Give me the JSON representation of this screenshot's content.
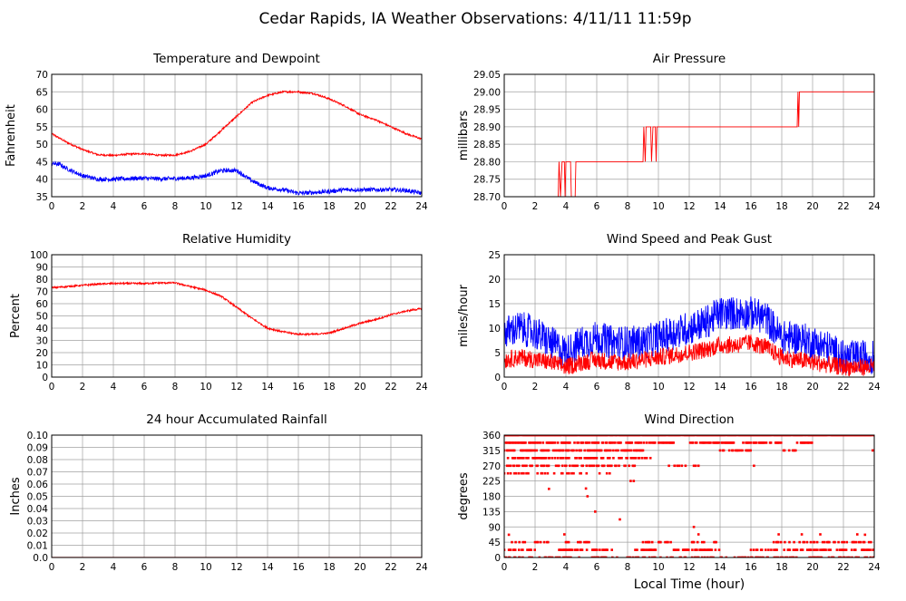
{
  "page": {
    "title": "Cedar Rapids, IA Weather Observations: 4/11/11 11:59p"
  },
  "colors": {
    "red": "#ff0000",
    "blue": "#0000ff",
    "grid": "#a0a0a0",
    "axis": "#000000"
  },
  "chart_data": [
    {
      "id": "temp",
      "type": "line",
      "title": "Temperature and Dewpoint",
      "ylabel": "Fahrenheit",
      "xlabel": "",
      "xlim": [
        0,
        24
      ],
      "ylim": [
        35,
        70
      ],
      "xticks": [
        0,
        2,
        4,
        6,
        8,
        10,
        12,
        14,
        16,
        18,
        20,
        22,
        24
      ],
      "yticks": [
        35,
        40,
        45,
        50,
        55,
        60,
        65,
        70
      ],
      "series": [
        {
          "color": "#ff0000",
          "noise": 0.25,
          "points": [
            [
              0,
              53
            ],
            [
              1,
              50.5
            ],
            [
              2,
              48.5
            ],
            [
              3,
              47
            ],
            [
              4,
              46.8
            ],
            [
              5,
              47.2
            ],
            [
              6,
              47.3
            ],
            [
              7,
              46.8
            ],
            [
              8,
              46.9
            ],
            [
              9,
              48
            ],
            [
              10,
              50
            ],
            [
              11,
              54
            ],
            [
              12,
              58
            ],
            [
              13,
              62
            ],
            [
              14,
              64
            ],
            [
              15,
              65
            ],
            [
              16,
              65
            ],
            [
              17,
              64.5
            ],
            [
              18,
              63
            ],
            [
              19,
              61
            ],
            [
              20,
              58.5
            ],
            [
              21,
              57
            ],
            [
              22,
              55
            ],
            [
              23,
              53
            ],
            [
              24,
              51.5
            ]
          ]
        },
        {
          "color": "#0000ff",
          "noise": 0.6,
          "points": [
            [
              0,
              44.5
            ],
            [
              0.5,
              44.3
            ],
            [
              1,
              43
            ],
            [
              2,
              41
            ],
            [
              3,
              40
            ],
            [
              4,
              40
            ],
            [
              5,
              40.2
            ],
            [
              6,
              40.3
            ],
            [
              7,
              40.1
            ],
            [
              8,
              40.2
            ],
            [
              9,
              40.4
            ],
            [
              10,
              41
            ],
            [
              11,
              42.5
            ],
            [
              12,
              42.5
            ],
            [
              13,
              39.5
            ],
            [
              14,
              37.5
            ],
            [
              15,
              37
            ],
            [
              16,
              36
            ],
            [
              17,
              36.2
            ],
            [
              18,
              36.5
            ],
            [
              19,
              37
            ],
            [
              20,
              37
            ],
            [
              21,
              37
            ],
            [
              22,
              37
            ],
            [
              23,
              36.8
            ],
            [
              24,
              36
            ]
          ]
        }
      ]
    },
    {
      "id": "pressure",
      "type": "line",
      "title": "Air Pressure",
      "ylabel": "millibars",
      "xlabel": "",
      "xlim": [
        0,
        24
      ],
      "ylim": [
        28.7,
        29.05
      ],
      "xticks": [
        0,
        2,
        4,
        6,
        8,
        10,
        12,
        14,
        16,
        18,
        20,
        22,
        24
      ],
      "yticks": [
        28.7,
        28.75,
        28.8,
        28.85,
        28.9,
        28.95,
        29.0,
        29.05
      ],
      "series": [
        {
          "color": "#ff0000",
          "noise": 0,
          "points": [
            [
              3.5,
              28.7
            ],
            [
              3.55,
              28.8
            ],
            [
              3.65,
              28.7
            ],
            [
              3.75,
              28.8
            ],
            [
              3.9,
              28.8
            ],
            [
              3.95,
              28.7
            ],
            [
              4,
              28.8
            ],
            [
              4.3,
              28.8
            ],
            [
              4.35,
              28.7
            ],
            [
              4.6,
              28.7
            ],
            [
              4.65,
              28.8
            ],
            [
              9.0,
              28.8
            ],
            [
              9.05,
              28.9
            ],
            [
              9.15,
              28.8
            ],
            [
              9.2,
              28.9
            ],
            [
              9.5,
              28.9
            ],
            [
              9.55,
              28.8
            ],
            [
              9.65,
              28.9
            ],
            [
              9.8,
              28.9
            ],
            [
              9.85,
              28.8
            ],
            [
              9.9,
              28.9
            ],
            [
              19.0,
              28.9
            ],
            [
              19.05,
              29.0
            ],
            [
              19.1,
              28.9
            ],
            [
              19.15,
              29.0
            ],
            [
              24,
              29.0
            ]
          ]
        }
      ]
    },
    {
      "id": "humidity",
      "type": "line",
      "title": "Relative Humidity",
      "ylabel": "Percent",
      "xlabel": "",
      "xlim": [
        0,
        24
      ],
      "ylim": [
        0,
        100
      ],
      "xticks": [
        0,
        2,
        4,
        6,
        8,
        10,
        12,
        14,
        16,
        18,
        20,
        22,
        24
      ],
      "yticks": [
        0,
        10,
        20,
        30,
        40,
        50,
        60,
        70,
        80,
        90,
        100
      ],
      "series": [
        {
          "color": "#ff0000",
          "noise": 0.7,
          "points": [
            [
              0,
              73
            ],
            [
              1,
              74
            ],
            [
              2,
              75
            ],
            [
              3,
              76
            ],
            [
              4,
              76.5
            ],
            [
              5,
              76.5
            ],
            [
              6,
              76.5
            ],
            [
              7,
              77
            ],
            [
              8,
              77
            ],
            [
              9,
              74
            ],
            [
              10,
              71
            ],
            [
              11,
              66
            ],
            [
              12,
              57
            ],
            [
              13,
              48
            ],
            [
              14,
              40
            ],
            [
              15,
              37
            ],
            [
              16,
              35
            ],
            [
              17,
              35
            ],
            [
              18,
              36
            ],
            [
              19,
              40
            ],
            [
              20,
              44
            ],
            [
              21,
              47
            ],
            [
              22,
              51
            ],
            [
              23,
              54
            ],
            [
              24,
              56
            ]
          ]
        }
      ]
    },
    {
      "id": "wind",
      "type": "line",
      "title": "Wind Speed and Peak Gust",
      "ylabel": "miles/hour",
      "xlabel": "",
      "xlim": [
        0,
        24
      ],
      "ylim": [
        0,
        25
      ],
      "xticks": [
        0,
        2,
        4,
        6,
        8,
        10,
        12,
        14,
        16,
        18,
        20,
        22,
        24
      ],
      "yticks": [
        0,
        5,
        10,
        15,
        20,
        25
      ],
      "series": [
        {
          "color": "#0000ff",
          "noise": 3.5,
          "points": [
            [
              0,
              8
            ],
            [
              1,
              9
            ],
            [
              2,
              8
            ],
            [
              3,
              6
            ],
            [
              4,
              4
            ],
            [
              5,
              6
            ],
            [
              6,
              7
            ],
            [
              7,
              6
            ],
            [
              8,
              6
            ],
            [
              9,
              6
            ],
            [
              10,
              7
            ],
            [
              11,
              8
            ],
            [
              12,
              9
            ],
            [
              13,
              10
            ],
            [
              14,
              12
            ],
            [
              15,
              12
            ],
            [
              16,
              12
            ],
            [
              17,
              11
            ],
            [
              18,
              7
            ],
            [
              19,
              7
            ],
            [
              20,
              6
            ],
            [
              21,
              5
            ],
            [
              22,
              3
            ],
            [
              23,
              3
            ],
            [
              24,
              3
            ]
          ]
        },
        {
          "color": "#ff0000",
          "noise": 1.8,
          "points": [
            [
              0,
              3
            ],
            [
              1,
              3.5
            ],
            [
              2,
              3
            ],
            [
              3,
              2.5
            ],
            [
              4,
              1.5
            ],
            [
              5,
              2.5
            ],
            [
              6,
              3
            ],
            [
              7,
              2.5
            ],
            [
              8,
              2.5
            ],
            [
              9,
              3
            ],
            [
              10,
              3.5
            ],
            [
              11,
              4
            ],
            [
              12,
              4.5
            ],
            [
              13,
              5
            ],
            [
              14,
              6
            ],
            [
              15,
              6
            ],
            [
              16,
              6.5
            ],
            [
              17,
              5.5
            ],
            [
              18,
              3.5
            ],
            [
              19,
              3
            ],
            [
              20,
              2.5
            ],
            [
              21,
              2
            ],
            [
              22,
              1.5
            ],
            [
              23,
              1.5
            ],
            [
              24,
              1.5
            ]
          ]
        }
      ]
    },
    {
      "id": "rain",
      "type": "line",
      "title": "24 hour Accumulated Rainfall",
      "ylabel": "Inches",
      "xlabel": "",
      "xlim": [
        0,
        24
      ],
      "ylim": [
        0,
        0.1
      ],
      "xticks": [
        0,
        2,
        4,
        6,
        8,
        10,
        12,
        14,
        16,
        18,
        20,
        22,
        24
      ],
      "yticks": [
        0.0,
        0.01,
        0.02,
        0.03,
        0.04,
        0.05,
        0.06,
        0.07,
        0.08,
        0.09,
        0.1
      ],
      "series": [
        {
          "color": "#ff0000",
          "noise": 0,
          "points": [
            [
              0,
              0
            ],
            [
              24,
              0
            ]
          ]
        }
      ]
    },
    {
      "id": "winddir",
      "type": "scatter",
      "title": "Wind Direction",
      "ylabel": "degrees",
      "xlabel": "Local Time (hour)",
      "xlim": [
        0,
        24
      ],
      "ylim": [
        0,
        360
      ],
      "xticks": [
        0,
        2,
        4,
        6,
        8,
        10,
        12,
        14,
        16,
        18,
        20,
        22,
        24
      ],
      "yticks": [
        0,
        45,
        90,
        135,
        180,
        225,
        270,
        315,
        360
      ],
      "levels": [
        {
          "y": 360,
          "ranges": [
            [
              0,
              24
            ]
          ],
          "density": 0.95
        },
        {
          "y": 337.5,
          "ranges": [
            [
              0,
              11
            ],
            [
              12,
              15
            ],
            [
              15.5,
              18
            ],
            [
              19,
              20
            ]
          ],
          "density": 0.6
        },
        {
          "y": 315,
          "ranges": [
            [
              0,
              9
            ],
            [
              14,
              16
            ],
            [
              18,
              19
            ]
          ],
          "density": 0.5
        },
        {
          "y": 292.5,
          "ranges": [
            [
              0,
              9.5
            ]
          ],
          "density": 0.45
        },
        {
          "y": 270,
          "ranges": [
            [
              0,
              8.5
            ],
            [
              10.5,
              13
            ]
          ],
          "density": 0.35
        },
        {
          "y": 247.5,
          "ranges": [
            [
              0,
              7
            ]
          ],
          "density": 0.25
        },
        {
          "y": 22.5,
          "ranges": [
            [
              0,
              2
            ],
            [
              3.5,
              7
            ],
            [
              8.5,
              10
            ],
            [
              11,
              14
            ],
            [
              16,
              24
            ]
          ],
          "density": 0.5
        },
        {
          "y": 45,
          "ranges": [
            [
              0.5,
              3
            ],
            [
              4,
              6
            ],
            [
              9,
              11
            ],
            [
              12,
              14
            ],
            [
              17,
              24
            ]
          ],
          "density": 0.3
        },
        {
          "y": 0,
          "ranges": [
            [
              0,
              24
            ]
          ],
          "density": 0.35
        }
      ],
      "points": [
        [
          0.3,
          67
        ],
        [
          3.9,
          68
        ],
        [
          5.9,
          135
        ],
        [
          7.5,
          112
        ],
        [
          5.4,
          180
        ],
        [
          5.3,
          203
        ],
        [
          2.9,
          202
        ],
        [
          8.2,
          225
        ],
        [
          8.4,
          225
        ],
        [
          12.3,
          90
        ],
        [
          12.6,
          68
        ],
        [
          17.8,
          68
        ],
        [
          19.3,
          68
        ],
        [
          20.5,
          68
        ],
        [
          22.9,
          68
        ],
        [
          23.4,
          67
        ],
        [
          16.2,
          270
        ],
        [
          23.9,
          315
        ]
      ]
    }
  ]
}
